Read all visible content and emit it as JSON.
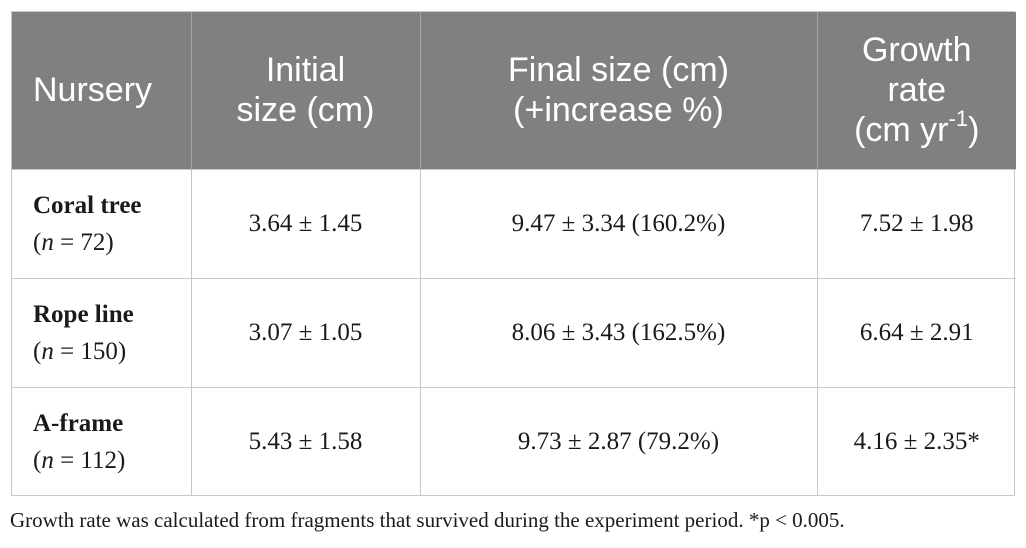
{
  "table": {
    "headers": {
      "nursery": "Nursery",
      "initial_line1": "Initial",
      "initial_line2": "size (cm)",
      "final_line1": "Final size (cm)",
      "final_line2": "(+increase %)",
      "growth_line1": "Growth",
      "growth_line2": "rate",
      "growth_line3_prefix": "(cm yr",
      "growth_line3_sup": "-1",
      "growth_line3_suffix": ")"
    },
    "rows": [
      {
        "nursery": "Coral tree",
        "n_symbol": "n",
        "n_value": " = 72)",
        "initial": "3.64 ± 1.45",
        "final": "9.47 ± 3.34 (160.2%)",
        "growth": "7.52 ± 1.98"
      },
      {
        "nursery": "Rope line",
        "n_symbol": "n",
        "n_value": " = 150)",
        "initial": "3.07 ± 1.05",
        "final": "8.06 ± 3.43 (162.5%)",
        "growth": "6.64 ± 2.91"
      },
      {
        "nursery": "A-frame",
        "n_symbol": "n",
        "n_value": " = 112)",
        "initial": "5.43 ± 1.58",
        "final": "9.73 ± 2.87 (79.2%)",
        "growth": "4.16 ± 2.35*"
      }
    ]
  },
  "footnote": "Growth rate was calculated from fragments that survived during the experiment period. *p < 0.005.",
  "colors": {
    "header_bg": "#7f807f",
    "header_text": "#ffffff",
    "grid": "#c8c8c8"
  }
}
